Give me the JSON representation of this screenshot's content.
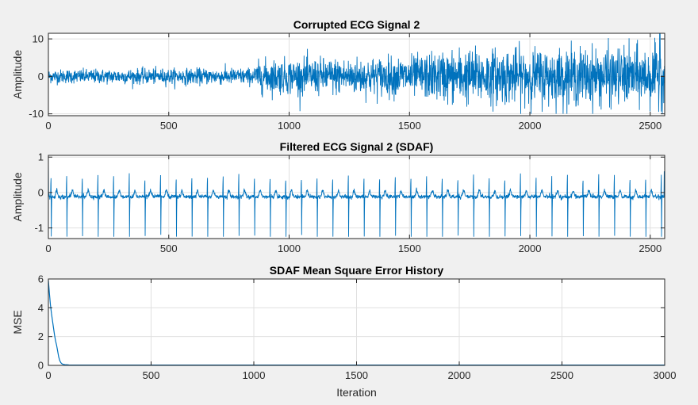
{
  "figure": {
    "background": "#f0f0f0",
    "axes_background": "#ffffff",
    "line_color": "#0072bd",
    "grid_color": "#e0e0e0",
    "axis_color": "#262626"
  },
  "chart_data": [
    {
      "type": "line",
      "title": "Corrupted ECG Signal 2",
      "xlabel": "",
      "ylabel": "Amplitude",
      "xlim": [
        0,
        2560
      ],
      "ylim": [
        -10.5,
        11.5
      ],
      "xticks": [
        0,
        500,
        1000,
        1500,
        2000,
        2500
      ],
      "yticks": [
        -10,
        0,
        10
      ],
      "grid": true,
      "legend": "none",
      "series": [
        {
          "points": 2560,
          "pattern": "noisy ECG waveform; noise amplitude grows with sample index",
          "noise_std_by_x": [
            [
              0,
              0.9
            ],
            [
              850,
              1.1
            ],
            [
              880,
              2.2
            ],
            [
              1500,
              2.6
            ],
            [
              1700,
              3.6
            ],
            [
              2000,
              3.6
            ],
            [
              2560,
              3.8
            ]
          ],
          "spike_at_x": 2540,
          "spike_value": 12,
          "y_range": [
            -10,
            12
          ]
        }
      ]
    },
    {
      "type": "line",
      "title": "Filtered ECG Signal 2 (SDAF)",
      "xlabel": "",
      "ylabel": "Amplitude",
      "xlim": [
        0,
        2560
      ],
      "ylim": [
        -1.3,
        1.05
      ],
      "xticks": [
        0,
        500,
        1000,
        1500,
        2000,
        2500
      ],
      "yticks": [
        -1,
        0,
        1
      ],
      "grid": true,
      "legend": "none",
      "series": [
        {
          "points": 2560,
          "pattern": "periodic ECG: tall negative spikes with small positive peaks",
          "beat_period": 65,
          "first_beat": 12,
          "spike_min": -1.25,
          "peak_max": 0.55,
          "baseline": 0.0,
          "y_range": [
            -1.25,
            1.0
          ]
        }
      ]
    },
    {
      "type": "line",
      "title": "SDAF Mean Square Error History",
      "xlabel": "Iteration",
      "ylabel": "MSE",
      "xlim": [
        0,
        3000
      ],
      "ylim": [
        0,
        6
      ],
      "xticks": [
        0,
        500,
        1000,
        1500,
        2000,
        2500,
        3000
      ],
      "yticks": [
        0,
        2,
        4,
        6
      ],
      "grid": true,
      "legend": "none",
      "series": [
        {
          "x": [
            0,
            5,
            10,
            15,
            20,
            25,
            30,
            35,
            40,
            45,
            50,
            55,
            60,
            65,
            70,
            80,
            90,
            100,
            120,
            150,
            200,
            300,
            500,
            1000,
            1500,
            2000,
            2500,
            3000
          ],
          "y": [
            5.9,
            5.0,
            4.2,
            3.6,
            3.1,
            2.6,
            2.1,
            1.7,
            1.4,
            1.0,
            0.6,
            0.35,
            0.2,
            0.12,
            0.08,
            0.05,
            0.04,
            0.03,
            0.02,
            0.02,
            0.02,
            0.02,
            0.02,
            0.02,
            0.02,
            0.02,
            0.02,
            0.02
          ]
        }
      ]
    }
  ]
}
